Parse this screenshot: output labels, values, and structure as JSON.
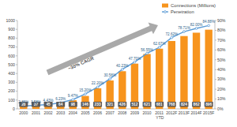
{
  "chart_data": {
    "type": "bar",
    "annotations": [
      "~30% CAGR"
    ],
    "categories": [
      "2000",
      "2001",
      "2002",
      "2003",
      "2004",
      "2005",
      "2006",
      "2007",
      "2008",
      "2009",
      "2010",
      "2011 YTD",
      "2012F",
      "2013F",
      "2014F",
      "2015F"
    ],
    "series": [
      {
        "name": "Connections (Millions)",
        "type": "bar",
        "color": "#f7941d",
        "values": [
          28,
          37,
          45,
          64,
          98,
          146,
          233,
          321,
          426,
          512,
          621,
          681,
          768,
          824,
          862,
          896
        ]
      },
      {
        "name": "Penetration",
        "type": "line",
        "axis": "y2",
        "color": "#5b9bd5",
        "marker": "circle",
        "values": [
          2.86,
          3.58,
          4.43,
          6.23,
          9.47,
          15.2,
          22.2,
          30.58,
          40.23,
          47.7,
          56.55,
          62.67,
          72.62,
          78.71,
          82.0,
          84.88
        ],
        "value_labels": [
          "2.86%",
          "3.58%",
          "4.43%",
          "6.23%",
          "9.47%",
          "15.20%",
          "22.20%",
          "30.58%",
          "40.23%",
          "47.70%",
          "56.55%",
          "62.67%",
          "72.62%",
          "78.71%",
          "82.00%",
          "84.88%"
        ]
      }
    ],
    "ylim": [
      0,
      1000
    ],
    "yticks": [
      0,
      100,
      200,
      300,
      400,
      500,
      600,
      700,
      800,
      900,
      1000
    ],
    "y2lim": [
      0,
      90
    ],
    "y2ticks": [
      {
        "value": 0,
        "label": "0%"
      },
      {
        "value": 10,
        "label": "10%"
      },
      {
        "value": 20,
        "label": "20%"
      },
      {
        "value": 30,
        "label": "30%"
      },
      {
        "value": 40,
        "label": "40%"
      },
      {
        "value": 50,
        "label": "50%"
      },
      {
        "value": 60,
        "label": "60%"
      },
      {
        "value": 70,
        "label": "70%"
      },
      {
        "value": 80,
        "label": "80%"
      },
      {
        "value": 90,
        "label": "90%"
      }
    ],
    "data_labels": true,
    "legend": "top-right",
    "grid": false
  }
}
